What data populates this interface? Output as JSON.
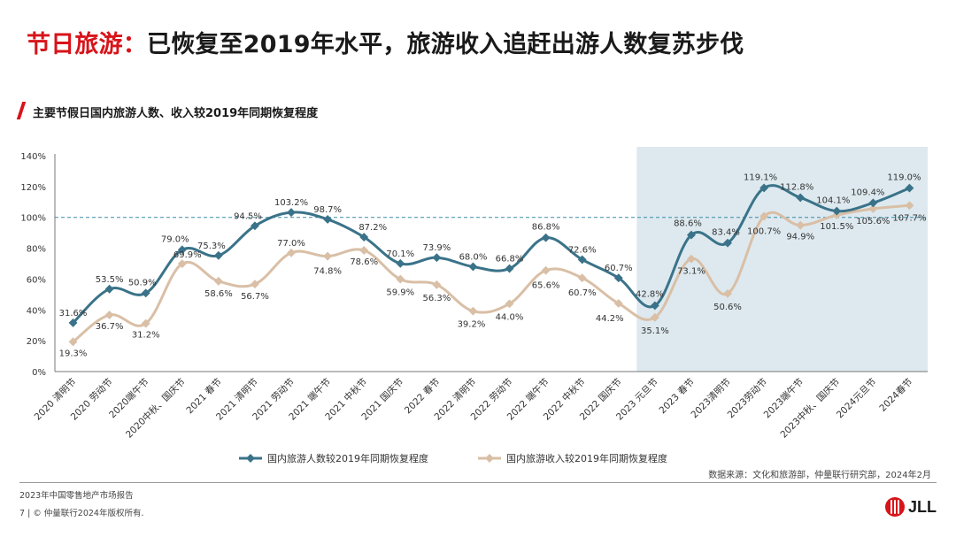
{
  "header": {
    "title_red": "节日旅游：",
    "title_dark": "已恢复至2019年水平，旅游收入追赶出游人数复苏步伐",
    "subtitle": "主要节假日国内旅游人数、收入较2019年同期恢复程度"
  },
  "chart_data": {
    "type": "line",
    "categories": [
      "2020 清明节",
      "2020 劳动节",
      "2020端午节",
      "2020中秋、国庆节",
      "2021 春节",
      "2021 清明节",
      "2021 劳动节",
      "2021 端午节",
      "2021 中秋节",
      "2021 国庆节",
      "2022 春节",
      "2022 清明节",
      "2022 劳动节",
      "2022 端午节",
      "2022 中秋节",
      "2022 国庆节",
      "2023 元旦节",
      "2023 春节",
      "2023清明节",
      "2023劳动节",
      "2023端午节",
      "2023中秋、国庆节",
      "2024元旦节",
      "2024春节"
    ],
    "series": [
      {
        "name": "国内旅游人数较2019年同期恢复程度",
        "color": "#3a7389",
        "values": [
          31.6,
          53.5,
          50.9,
          79.0,
          75.3,
          94.5,
          103.2,
          98.7,
          87.2,
          70.1,
          73.9,
          68.0,
          66.8,
          86.8,
          72.6,
          60.7,
          42.8,
          88.6,
          83.4,
          119.1,
          112.8,
          104.1,
          109.4,
          119.0
        ],
        "labels": [
          "31.6%",
          "53.5%",
          "50.9%",
          "79.0%",
          "75.3%",
          "94.5%",
          "103.2%",
          "98.7%",
          "87.2%",
          "70.1%",
          "73.9%",
          "68.0%",
          "66.8%",
          "86.8%",
          "72.6%",
          "60.7%",
          "42.8%",
          "88.6%",
          "83.4%",
          "119.1%",
          "112.8%",
          "104.1%",
          "109.4%",
          "119.0%"
        ]
      },
      {
        "name": "国内旅游收入较2019年同期恢复程度",
        "color": "#d9bfa6",
        "values": [
          19.3,
          36.7,
          31.2,
          69.9,
          58.6,
          56.7,
          77.0,
          74.8,
          78.6,
          59.9,
          56.3,
          39.2,
          44.0,
          65.6,
          60.7,
          44.2,
          35.1,
          73.1,
          50.6,
          100.7,
          94.9,
          101.5,
          105.6,
          107.7
        ],
        "labels": [
          "19.3%",
          "36.7%",
          "31.2%",
          "69.9%",
          "58.6%",
          "56.7%",
          "77.0%",
          "74.8%",
          "78.6%",
          "59.9%",
          "56.3%",
          "39.2%",
          "44.0%",
          "65.6%",
          "60.7%",
          "44.2%",
          "35.1%",
          "73.1%",
          "50.6%",
          "100.7%",
          "94.9%",
          "101.5%",
          "105.6%",
          "107.7%"
        ]
      }
    ],
    "ylim": [
      0,
      140
    ],
    "yticks": [
      "0%",
      "20%",
      "40%",
      "60%",
      "80%",
      "100%",
      "120%",
      "140%"
    ],
    "reference_line": 100,
    "reference_color": "#3a8aa8",
    "highlight_from_index": 16,
    "highlight_color": "#dde9ef",
    "legend_position": "bottom"
  },
  "source": "数据来源：文化和旅游部，仲量联行研究部，2024年2月",
  "footer": {
    "report": "2023年中国零售地产市场报告",
    "copyright": "7  |  © 仲量联行2024年版权所有."
  },
  "logo": {
    "text": "JLL",
    "color": "#d7141a"
  }
}
